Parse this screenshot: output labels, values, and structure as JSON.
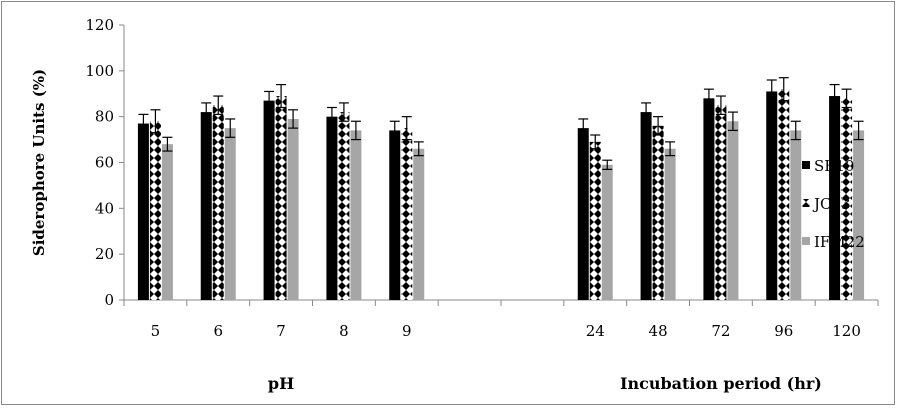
{
  "chart_data": {
    "type": "bar",
    "title": "",
    "ylabel": "Siderophore Units (%)",
    "ylim": [
      0,
      120
    ],
    "yticks": [
      0,
      20,
      40,
      60,
      80,
      100,
      120
    ],
    "categories": [
      "5",
      "6",
      "7",
      "8",
      "9",
      "",
      "",
      "24",
      "48",
      "72",
      "96",
      "120"
    ],
    "group_labels": [
      {
        "label": "pH",
        "span": [
          0,
          4
        ]
      },
      {
        "label": "Incubation period (hr)",
        "span": [
          7,
          11
        ]
      }
    ],
    "legend_position": "right",
    "error_bars": true,
    "grid": false,
    "series": [
      {
        "name": "SB10",
        "color": "#000000",
        "pattern": "solid",
        "values": [
          77,
          82,
          87,
          80,
          74,
          null,
          null,
          75,
          82,
          88,
          91,
          89
        ],
        "errors": [
          4,
          4,
          4,
          4,
          4,
          null,
          null,
          4,
          4,
          4,
          5,
          5
        ]
      },
      {
        "name": "JC13",
        "color": "#000000",
        "pattern": "diamonds",
        "values": [
          78,
          85,
          89,
          82,
          75,
          null,
          null,
          69,
          76,
          85,
          92,
          88
        ],
        "errors": [
          5,
          4,
          5,
          4,
          5,
          null,
          null,
          3,
          4,
          4,
          5,
          4
        ]
      },
      {
        "name": "IFM22",
        "color": "#a6a6a6",
        "pattern": "solid",
        "values": [
          68,
          75,
          79,
          74,
          66,
          null,
          null,
          59,
          66,
          78,
          74,
          74
        ],
        "errors": [
          3,
          4,
          4,
          4,
          3,
          null,
          null,
          2,
          3,
          4,
          4,
          4
        ]
      }
    ]
  }
}
